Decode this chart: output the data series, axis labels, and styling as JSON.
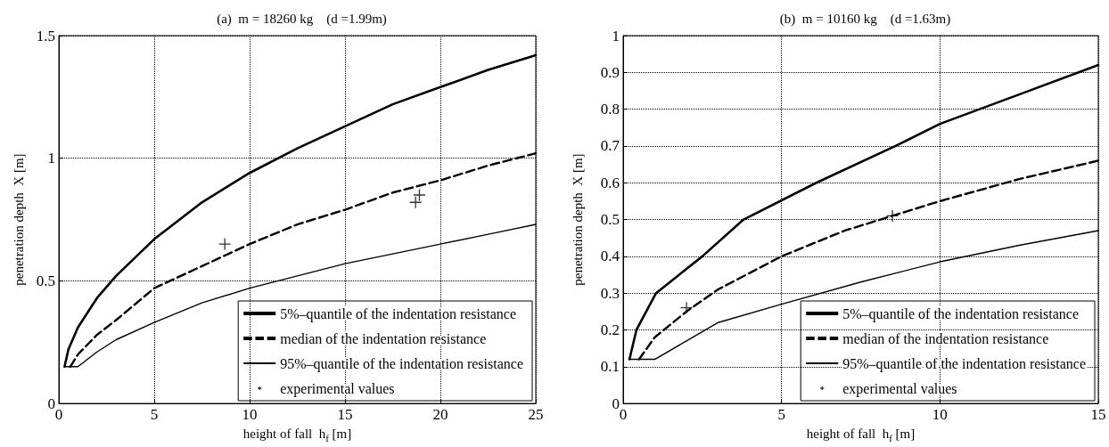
{
  "chart_data": [
    {
      "type": "line",
      "title": "(a)  m = 18260 kg    (d =1.99m)",
      "xlabel": "height of fall  h$_{f}$ [m]",
      "ylabel": "penetration depth  X [m]",
      "xlim": [
        0,
        25
      ],
      "xticks": [
        0,
        5,
        10,
        15,
        20,
        25
      ],
      "ylim": [
        0,
        1.5
      ],
      "yticks": [
        0,
        0.5,
        1,
        1.5
      ],
      "grid": true,
      "legend": "bottom right",
      "series": [
        {
          "name": "5%–quantile of the indentation resistance",
          "type": "line",
          "color": "#000000",
          "line_style": "solid",
          "marker": "none",
          "x": [
            0.3,
            0.5,
            1,
            2,
            3,
            5,
            7.5,
            10,
            12.5,
            15,
            17.5,
            20,
            22.5,
            25
          ],
          "values": [
            0.15,
            0.22,
            0.31,
            0.43,
            0.52,
            0.67,
            0.82,
            0.94,
            1.04,
            1.13,
            1.22,
            1.29,
            1.36,
            1.42
          ]
        },
        {
          "name": "median of the indentation resistance",
          "color": "#000000",
          "line_style": "dashed",
          "marker": "none",
          "x": [
            0.6,
            1,
            2,
            3,
            5,
            7.5,
            10,
            12.5,
            15,
            17.5,
            20,
            22.5,
            25
          ],
          "values": [
            0.15,
            0.2,
            0.28,
            0.34,
            0.47,
            0.56,
            0.65,
            0.73,
            0.79,
            0.86,
            0.91,
            0.97,
            1.02
          ]
        },
        {
          "name": "95%–quantile of the indentation resistance",
          "color": "#000000",
          "line_style": "solid",
          "marker": "none",
          "x": [
            0.3,
            1,
            2,
            3,
            5,
            7.5,
            10,
            12.5,
            15,
            17.5,
            20,
            22.5,
            25
          ],
          "values": [
            0.15,
            0.15,
            0.21,
            0.26,
            0.33,
            0.41,
            0.47,
            0.52,
            0.57,
            0.61,
            0.65,
            0.69,
            0.73
          ]
        },
        {
          "name": "experimental values",
          "type": "scatter",
          "color": "#000000",
          "marker": "cross",
          "x": [
            8.7,
            18.7,
            18.9
          ],
          "values": [
            0.65,
            0.82,
            0.85
          ]
        }
      ]
    },
    {
      "type": "line",
      "title": "(b)  m = 10160 kg    (d =1.63m)",
      "xlabel": "height of fall  h$_{f}$ [m]",
      "ylabel": "penetration depth  X [m]",
      "xlim": [
        0,
        15
      ],
      "xticks": [
        0,
        5,
        10,
        15
      ],
      "ylim": [
        0,
        1
      ],
      "yticks": [
        0,
        0.1,
        0.2,
        0.3,
        0.4,
        0.5,
        0.6,
        0.7,
        0.8,
        0.9,
        1
      ],
      "grid": true,
      "legend": "bottom right",
      "series": [
        {
          "name": "5%–quantile of the indentation resistance",
          "color": "#000000",
          "line_style": "solid",
          "marker": "none",
          "x": [
            0.2,
            0.42,
            1.04,
            2.5,
            3.8,
            6.1,
            8.6,
            10,
            12.5,
            15
          ],
          "values": [
            0.12,
            0.2,
            0.3,
            0.4,
            0.5,
            0.6,
            0.7,
            0.76,
            0.84,
            0.92
          ]
        },
        {
          "name": "median of the indentation resistance",
          "color": "#000000",
          "line_style": "dashed",
          "marker": "none",
          "x": [
            0.5,
            1,
            2,
            3,
            5,
            7,
            8.5,
            10,
            12.5,
            15
          ],
          "values": [
            0.12,
            0.18,
            0.25,
            0.31,
            0.4,
            0.47,
            0.51,
            0.55,
            0.61,
            0.66
          ]
        },
        {
          "name": "95%–quantile of the indentation resistance",
          "color": "#000000",
          "line_style": "solid",
          "marker": "none",
          "x": [
            0.2,
            1,
            2,
            3,
            5,
            7.5,
            10,
            12.5,
            15
          ],
          "values": [
            0.12,
            0.12,
            0.17,
            0.22,
            0.27,
            0.33,
            0.385,
            0.43,
            0.47
          ]
        },
        {
          "name": "experimental values",
          "type": "scatter",
          "color": "#000000",
          "marker": "cross",
          "x": [
            2,
            8.5
          ],
          "values": [
            0.26,
            0.51
          ]
        }
      ]
    }
  ]
}
